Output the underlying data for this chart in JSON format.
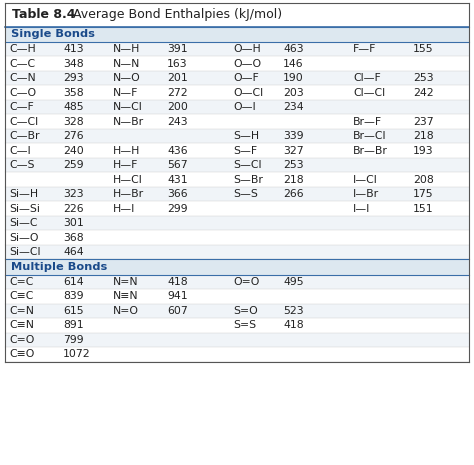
{
  "title_bold": "Table 8.4",
  "title_rest": "   Average Bond Enthalpies (kJ/mol)",
  "single_bonds_label": "Single Bonds",
  "multiple_bonds_label": "Multiple Bonds",
  "single_bond_rows": [
    [
      "C—H",
      "413",
      "N—H",
      "391",
      "O—H",
      "463",
      "F—F",
      "155"
    ],
    [
      "C—C",
      "348",
      "N—N",
      "163",
      "O—O",
      "146",
      "",
      ""
    ],
    [
      "C—N",
      "293",
      "N—O",
      "201",
      "O—F",
      "190",
      "Cl—F",
      "253"
    ],
    [
      "C—O",
      "358",
      "N—F",
      "272",
      "O—Cl",
      "203",
      "Cl—Cl",
      "242"
    ],
    [
      "C—F",
      "485",
      "N—Cl",
      "200",
      "O—I",
      "234",
      "",
      ""
    ],
    [
      "C—Cl",
      "328",
      "N—Br",
      "243",
      "",
      "",
      "Br—F",
      "237"
    ],
    [
      "C—Br",
      "276",
      "",
      "",
      "S—H",
      "339",
      "Br—Cl",
      "218"
    ],
    [
      "C—I",
      "240",
      "H—H",
      "436",
      "S—F",
      "327",
      "Br—Br",
      "193"
    ],
    [
      "C—S",
      "259",
      "H—F",
      "567",
      "S—Cl",
      "253",
      "",
      ""
    ],
    [
      "",
      "",
      "H—Cl",
      "431",
      "S—Br",
      "218",
      "I—Cl",
      "208"
    ],
    [
      "Si—H",
      "323",
      "H—Br",
      "366",
      "S—S",
      "266",
      "I—Br",
      "175"
    ],
    [
      "Si—Si",
      "226",
      "H—I",
      "299",
      "",
      "",
      "I—I",
      "151"
    ],
    [
      "Si—C",
      "301",
      "",
      "",
      "",
      "",
      "",
      ""
    ],
    [
      "Si—O",
      "368",
      "",
      "",
      "",
      "",
      "",
      ""
    ],
    [
      "Si—Cl",
      "464",
      "",
      "",
      "",
      "",
      "",
      ""
    ]
  ],
  "multiple_bond_rows": [
    [
      "C=C",
      "614",
      "N=N",
      "418",
      "O=O",
      "495",
      "",
      ""
    ],
    [
      "C≡C",
      "839",
      "N≡N",
      "941",
      "",
      "",
      "",
      ""
    ],
    [
      "C=N",
      "615",
      "N=O",
      "607",
      "S=O",
      "523",
      "",
      ""
    ],
    [
      "C≡N",
      "891",
      "",
      "",
      "S=S",
      "418",
      "",
      ""
    ],
    [
      "C=O",
      "799",
      "",
      "",
      "",
      "",
      "",
      ""
    ],
    [
      "C≡O",
      "1072",
      "",
      "",
      "",
      "",
      "",
      ""
    ]
  ],
  "bg_white": "#ffffff",
  "bg_light": "#f0f4f8",
  "title_bg": "#ffffff",
  "section_bg": "#dde8f0",
  "section_text_color": "#1a4a8a",
  "border_color": "#3a6ea8",
  "text_color": "#222222",
  "row_sep_color": "#cccccc",
  "outer_border_color": "#555555"
}
